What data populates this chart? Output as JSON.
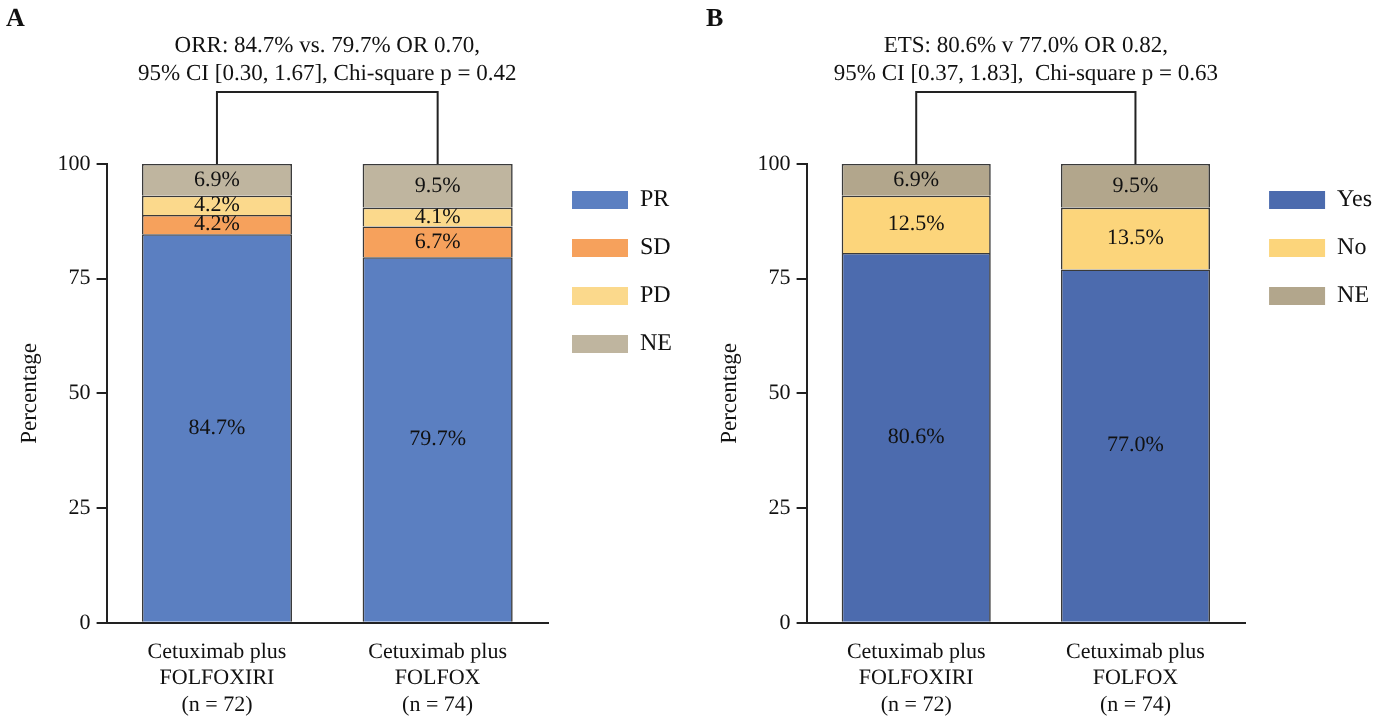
{
  "chart_data": [
    {
      "type": "bar",
      "title": "A",
      "ylabel": "Percentage",
      "stacked": true,
      "legend": "top right",
      "ylim": [
        0,
        100
      ],
      "yticks": [
        0,
        25,
        50,
        75,
        100
      ],
      "annotations": [
        "ORR: 84.7% vs. 79.7% OR 0.70,\n95% CI [0.30, 1.67], Chi-square p = 0.42"
      ],
      "categories": [
        "Cetuximab plus\nFOLFOXIRI\n(n = 72)",
        "Cetuximab plus\nFOLFOX\n(n = 74)"
      ],
      "series": [
        {
          "name": "PR",
          "color": "#5b7fc1",
          "values": [
            84.7,
            79.7
          ],
          "value_labels": [
            "84.7%",
            "79.7%"
          ]
        },
        {
          "name": "SD",
          "color": "#f6a15c",
          "values": [
            4.2,
            6.7
          ],
          "value_labels": [
            "4.2%",
            "6.7%"
          ]
        },
        {
          "name": "PD",
          "color": "#fbd98c",
          "values": [
            4.2,
            4.1
          ],
          "value_labels": [
            "4.2%",
            "4.1%"
          ]
        },
        {
          "name": "NE",
          "color": "#bfb59f",
          "values": [
            6.9,
            9.5
          ],
          "value_labels": [
            "6.9%",
            "9.5%"
          ]
        }
      ]
    },
    {
      "type": "bar",
      "title": "B",
      "ylabel": "Percentage",
      "stacked": true,
      "legend": "top right",
      "ylim": [
        0,
        100
      ],
      "yticks": [
        0,
        25,
        50,
        75,
        100
      ],
      "annotations": [
        "ETS: 80.6% v 77.0% OR 0.82,\n95% CI [0.37, 1.83],  Chi-square p = 0.63"
      ],
      "categories": [
        "Cetuximab plus\nFOLFOXIRI\n(n = 72)",
        "Cetuximab plus\nFOLFOX\n(n = 74)"
      ],
      "series": [
        {
          "name": "Yes",
          "color": "#4c6bae",
          "values": [
            80.6,
            77.0
          ],
          "value_labels": [
            "80.6%",
            "77.0%"
          ]
        },
        {
          "name": "No",
          "color": "#fcd57b",
          "values": [
            12.5,
            13.5
          ],
          "value_labels": [
            "12.5%",
            "13.5%"
          ]
        },
        {
          "name": "NE",
          "color": "#b2a68c",
          "values": [
            6.9,
            9.5
          ],
          "value_labels": [
            "6.9%",
            "9.5%"
          ]
        }
      ]
    }
  ]
}
